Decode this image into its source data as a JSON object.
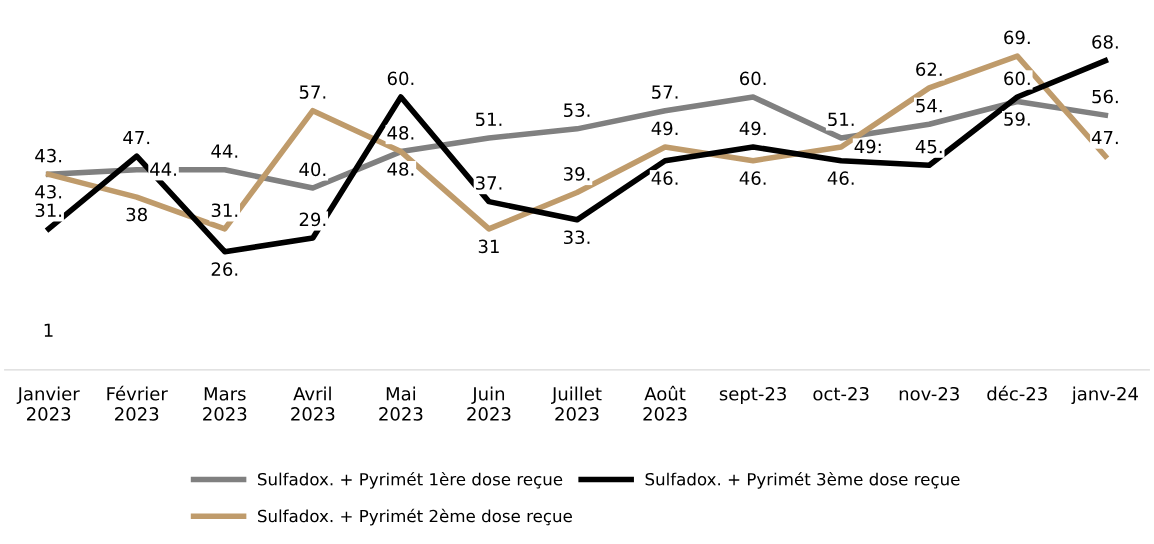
{
  "chart_data": {
    "type": "line",
    "categories": [
      "Janvier\n2023",
      "Février\n2023",
      "Mars\n2023",
      "Avril\n2023",
      "Mai\n2023",
      "Juin\n2023",
      "Juillet\n2023",
      "Août\n2023",
      "sept-23",
      "oct-23",
      "nov-23",
      "déc-23",
      "janv-24"
    ],
    "series": [
      {
        "name": "Sulfadox. + Pyrimét 1ère dose reçue",
        "color": "#808080",
        "values": [
          43,
          44,
          44,
          40,
          48,
          51,
          53,
          57,
          60,
          51,
          54,
          59,
          56
        ],
        "value_labels": [
          "43.",
          "44.",
          "44.",
          "40.",
          "48.",
          "51.",
          "53.",
          "57.",
          "60.",
          "51.",
          "54.",
          "59.",
          "56."
        ]
      },
      {
        "name": "Sulfadox. + Pyrimét 2ème dose reçue",
        "color": "#bf9b6b",
        "values": [
          43,
          38,
          31,
          57,
          48,
          31,
          39,
          49,
          46,
          49,
          62,
          69,
          47
        ],
        "value_labels": [
          "43.",
          "38",
          "31.",
          "57.",
          "48.",
          "31",
          "39.",
          "49.",
          "46.",
          "49:",
          "62.",
          "69.",
          "47."
        ]
      },
      {
        "name": "Sulfadox. + Pyrimét 3ème dose reçue",
        "color": "#000000",
        "values": [
          31,
          47,
          26,
          29,
          60,
          37,
          33,
          46,
          49,
          46,
          45,
          60,
          68
        ],
        "value_labels": [
          "31.",
          "47.",
          "26.",
          "29.",
          "60.",
          "37.",
          "33.",
          "46.",
          "49.",
          "46.",
          "45.",
          "60.",
          "68."
        ]
      }
    ],
    "tick_labels": "x",
    "grid": false,
    "legend": "bottom",
    "marker": "none",
    "line_style": "solid",
    "annotations": [
      "1"
    ]
  }
}
